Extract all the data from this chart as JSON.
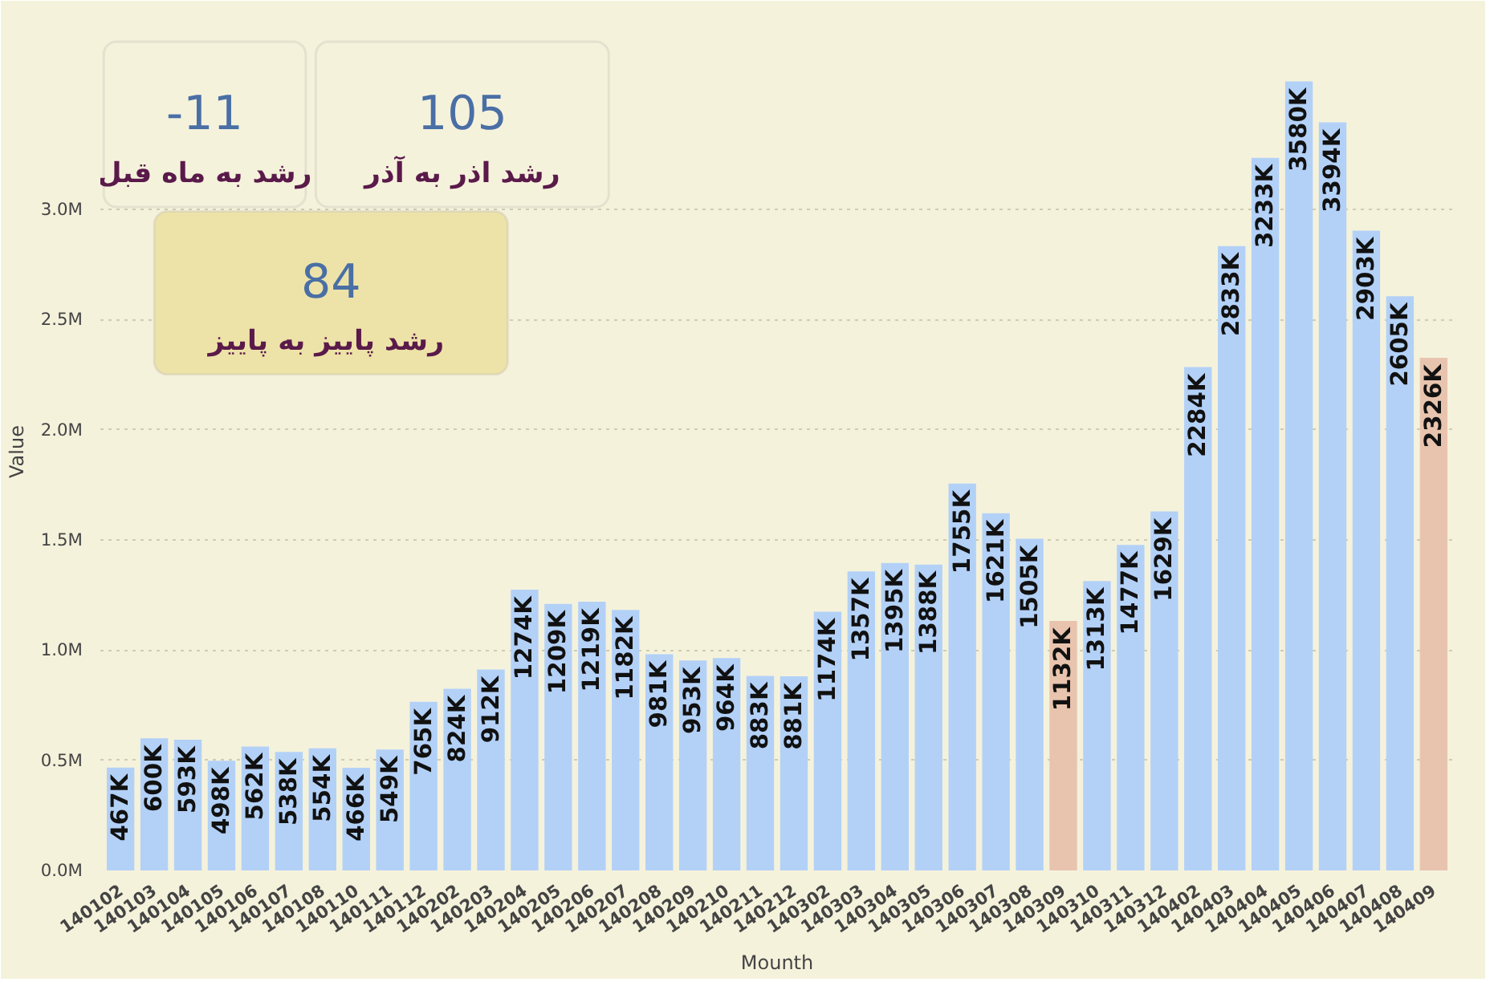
{
  "chart_data": {
    "type": "bar",
    "xlabel": "Mounth",
    "ylabel": "Value",
    "categories": [
      "140102",
      "140103",
      "140104",
      "140105",
      "140106",
      "140107",
      "140108",
      "140110",
      "140111",
      "140112",
      "140202",
      "140203",
      "140204",
      "140205",
      "140206",
      "140207",
      "140208",
      "140209",
      "140210",
      "140211",
      "140212",
      "140302",
      "140303",
      "140304",
      "140305",
      "140306",
      "140307",
      "140308",
      "140309",
      "140310",
      "140311",
      "140312",
      "140402",
      "140403",
      "140404",
      "140405",
      "140406",
      "140407",
      "140408",
      "140409"
    ],
    "values": [
      467000,
      600000,
      593000,
      498000,
      562000,
      538000,
      554000,
      466000,
      549000,
      765000,
      824000,
      912000,
      1274000,
      1209000,
      1219000,
      1182000,
      981000,
      953000,
      964000,
      883000,
      881000,
      1174000,
      1357000,
      1395000,
      1388000,
      1755000,
      1621000,
      1505000,
      1132000,
      1313000,
      1477000,
      1629000,
      2284000,
      2833000,
      3233000,
      3580000,
      3394000,
      2903000,
      2605000,
      2326000
    ],
    "value_labels": [
      "467K",
      "600K",
      "593K",
      "498K",
      "562K",
      "538K",
      "554K",
      "466K",
      "549K",
      "765K",
      "824K",
      "912K",
      "1274K",
      "1209K",
      "1219K",
      "1182K",
      "981K",
      "953K",
      "964K",
      "883K",
      "881K",
      "1174K",
      "1357K",
      "1395K",
      "1388K",
      "1755K",
      "1621K",
      "1505K",
      "1132K",
      "1313K",
      "1477K",
      "1629K",
      "2284K",
      "2833K",
      "3233K",
      "3580K",
      "3394K",
      "2903K",
      "2605K",
      "2326K"
    ],
    "colors": [
      "#b3d1f7",
      "#b3d1f7",
      "#b3d1f7",
      "#b3d1f7",
      "#b3d1f7",
      "#b3d1f7",
      "#b3d1f7",
      "#b3d1f7",
      "#b3d1f7",
      "#b3d1f7",
      "#b3d1f7",
      "#b3d1f7",
      "#b3d1f7",
      "#b3d1f7",
      "#b3d1f7",
      "#b3d1f7",
      "#b3d1f7",
      "#b3d1f7",
      "#b3d1f7",
      "#b3d1f7",
      "#b3d1f7",
      "#b3d1f7",
      "#b3d1f7",
      "#b3d1f7",
      "#b3d1f7",
      "#b3d1f7",
      "#b3d1f7",
      "#b3d1f7",
      "#e8c4ae",
      "#b3d1f7",
      "#b3d1f7",
      "#b3d1f7",
      "#b3d1f7",
      "#b3d1f7",
      "#b3d1f7",
      "#b3d1f7",
      "#b3d1f7",
      "#b3d1f7",
      "#b3d1f7",
      "#e8c4ae"
    ],
    "ylim": [
      0,
      3800000
    ],
    "yticks": [
      {
        "value": 0,
        "label": "0.0M"
      },
      {
        "value": 500000,
        "label": "0.5M"
      },
      {
        "value": 1000000,
        "label": "1.0M"
      },
      {
        "value": 1500000,
        "label": "1.5M"
      },
      {
        "value": 2000000,
        "label": "2.0M"
      },
      {
        "value": 2500000,
        "label": "2.5M"
      },
      {
        "value": 3000000,
        "label": "3.0M"
      }
    ],
    "grid": "y",
    "annotations": [
      "-11",
      "رشد به ماه قبل",
      "105",
      "رشد اذر به آذر",
      "84",
      "رشد پاییز  به پاییز"
    ]
  }
}
